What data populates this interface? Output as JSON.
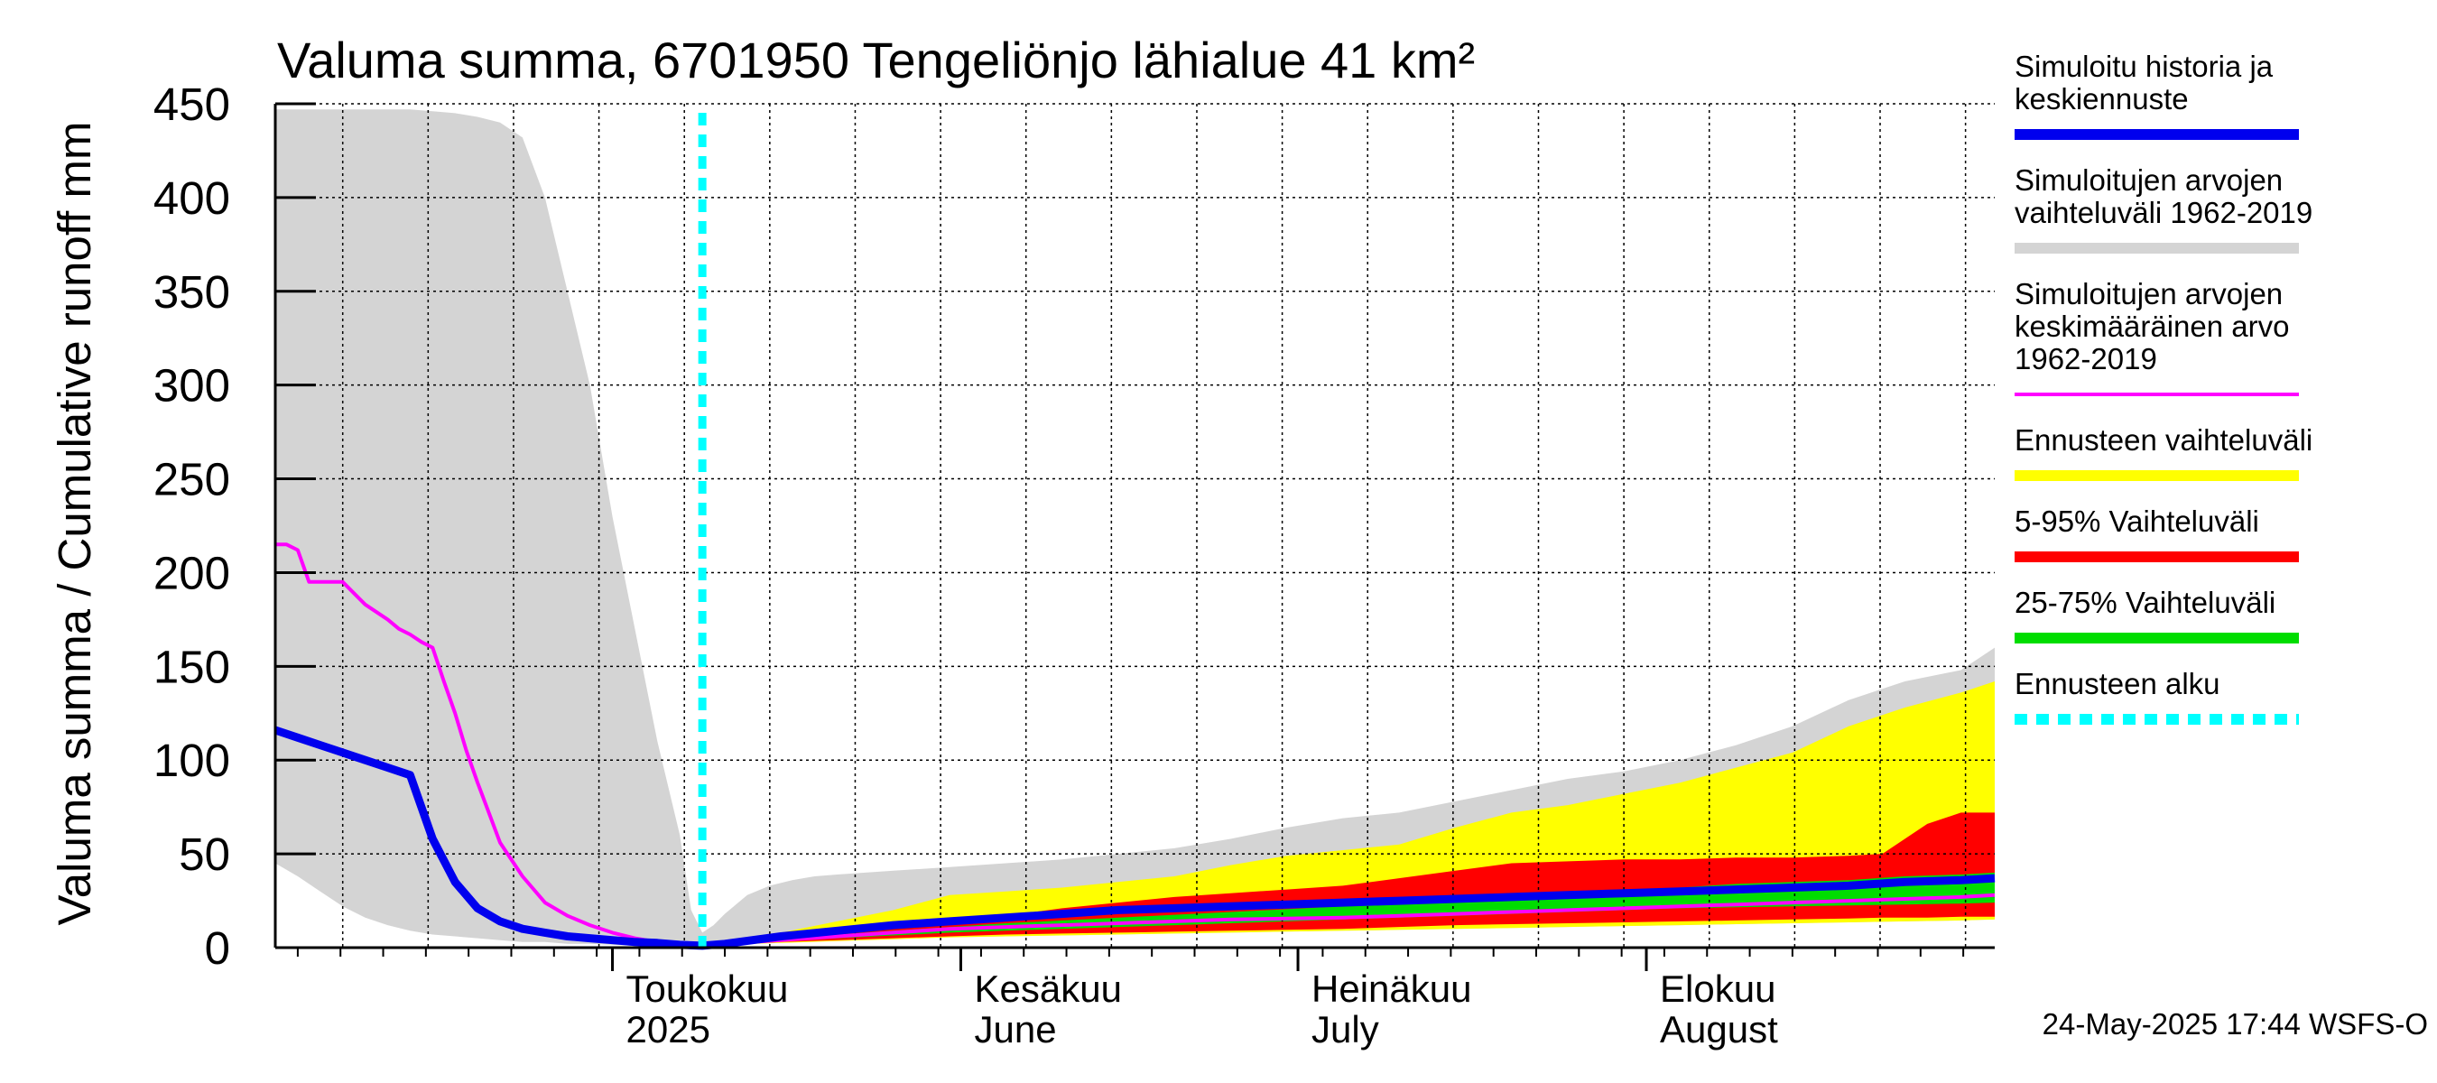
{
  "chart_data": {
    "type": "area",
    "title": "Valuma summa, 6701950 Tengeliönjo lähialue 41 km²",
    "ylabel": "Valuma summa / Cumulative runoff    mm",
    "ylim": [
      0,
      450
    ],
    "yticks": [
      0,
      50,
      100,
      150,
      200,
      250,
      300,
      350,
      400,
      450
    ],
    "x_unit": "days since 2025-04-01",
    "xlim": [
      0,
      153
    ],
    "month_labels": [
      {
        "day": 30,
        "line1": "Toukokuu",
        "line2": "2025"
      },
      {
        "day": 61,
        "line1": "Kesäkuu",
        "line2": "June"
      },
      {
        "day": 91,
        "line1": "Heinäkuu",
        "line2": "July"
      },
      {
        "day": 122,
        "line1": "Elokuu",
        "line2": "August"
      }
    ],
    "forecast_start_day": 38,
    "series": [
      {
        "name": "Simuloitujen arvojen vaihteluväli 1962-2019",
        "kind": "band",
        "color": "#d4d4d4",
        "x": [
          0,
          2,
          4,
          6,
          8,
          10,
          12,
          14,
          16,
          18,
          20,
          22,
          24,
          26,
          28,
          30,
          32,
          34,
          36,
          37,
          38,
          39,
          40,
          42,
          44,
          46,
          48,
          50,
          55,
          60,
          65,
          70,
          75,
          80,
          85,
          90,
          95,
          100,
          105,
          110,
          115,
          120,
          125,
          130,
          135,
          140,
          145,
          150,
          153
        ],
        "upper": [
          447,
          447,
          447,
          447,
          447,
          447,
          447,
          446,
          445,
          443,
          440,
          432,
          400,
          350,
          300,
          230,
          170,
          110,
          60,
          20,
          8,
          12,
          18,
          28,
          33,
          36,
          38,
          39,
          41,
          43,
          45,
          47,
          50,
          53,
          58,
          64,
          69,
          72,
          78,
          84,
          90,
          94,
          100,
          108,
          118,
          132,
          142,
          148,
          160
        ],
        "lower": [
          45,
          38,
          30,
          22,
          16,
          12,
          9,
          7,
          6,
          5,
          4,
          3,
          3,
          2,
          2,
          1.5,
          1,
          1,
          1,
          1,
          1,
          1.5,
          2,
          2.5,
          3,
          3.5,
          4,
          4.5,
          5,
          5.5,
          6,
          6.5,
          7,
          7.5,
          8,
          8.5,
          9,
          9.5,
          10,
          10.5,
          11,
          11.5,
          12,
          12.5,
          13,
          13.5,
          14,
          14.5,
          15
        ]
      },
      {
        "name": "Ennusteen vaihteluväli",
        "kind": "band",
        "color": "#ffff00",
        "x": [
          38,
          40,
          45,
          50,
          55,
          60,
          65,
          70,
          75,
          80,
          85,
          90,
          95,
          100,
          105,
          110,
          115,
          120,
          125,
          130,
          135,
          140,
          145,
          150,
          153
        ],
        "upper": [
          1,
          3,
          8,
          14,
          20,
          28,
          30,
          32,
          35,
          38,
          44,
          49,
          52,
          55,
          64,
          72,
          76,
          82,
          88,
          96,
          104,
          118,
          128,
          136,
          142
        ],
        "lower": [
          1,
          1.5,
          2.5,
          3.5,
          4.5,
          5.5,
          6,
          6.5,
          7,
          7.5,
          8,
          8.5,
          9,
          9.5,
          10,
          10.5,
          11,
          11.5,
          12,
          12.5,
          13,
          13.5,
          14,
          14.5,
          15
        ]
      },
      {
        "name": "5-95% Vaihteluväli",
        "kind": "band",
        "color": "#ff0000",
        "x": [
          38,
          40,
          45,
          50,
          55,
          60,
          65,
          70,
          75,
          80,
          85,
          90,
          95,
          100,
          105,
          110,
          115,
          120,
          125,
          130,
          135,
          140,
          143,
          145,
          147,
          150,
          153
        ],
        "upper": [
          1,
          2,
          5,
          8,
          11,
          14,
          17,
          21,
          24,
          27,
          29,
          31,
          33,
          37,
          41,
          45,
          46,
          47,
          47,
          48,
          48,
          49,
          50,
          58,
          66,
          72,
          72
        ],
        "lower": [
          1,
          1.5,
          3,
          4,
          5,
          6,
          7,
          7.5,
          8,
          8.5,
          9,
          9.5,
          10,
          11,
          12,
          12.5,
          13,
          13.5,
          14,
          14.5,
          15,
          15.5,
          16,
          16,
          16,
          16.5,
          16.5
        ]
      },
      {
        "name": "25-75% Vaihteluväli",
        "kind": "band",
        "color": "#00dd00",
        "x": [
          38,
          40,
          45,
          50,
          55,
          60,
          65,
          70,
          75,
          80,
          85,
          90,
          95,
          100,
          105,
          110,
          115,
          120,
          125,
          130,
          135,
          140,
          145,
          150,
          153
        ],
        "upper": [
          1,
          2,
          5,
          7,
          9,
          11,
          13,
          14.5,
          16,
          17.5,
          19,
          20.5,
          22,
          24,
          25.5,
          27,
          28.5,
          30,
          32,
          34,
          35,
          36,
          38,
          39,
          40
        ],
        "lower": [
          1,
          1.5,
          3.5,
          5,
          6.5,
          8,
          9,
          10,
          11,
          12,
          13,
          14,
          15,
          16,
          17,
          18,
          19,
          20,
          21,
          21.5,
          22,
          22.5,
          23,
          23.5,
          24
        ]
      },
      {
        "name": "Simuloitujen arvojen keskimääräinen arvo 1962-2019",
        "kind": "line",
        "color": "#ff00ff",
        "x": [
          0,
          1,
          2,
          3,
          4,
          6,
          8,
          10,
          11,
          12,
          13,
          14,
          15,
          16,
          17,
          18,
          19,
          20,
          22,
          24,
          26,
          28,
          30,
          32,
          34,
          36,
          38,
          40,
          45,
          50,
          55,
          60,
          65,
          70,
          75,
          80,
          85,
          90,
          95,
          100,
          105,
          110,
          115,
          120,
          125,
          130,
          135,
          140,
          145,
          150,
          153
        ],
        "y": [
          215,
          215,
          212,
          195,
          195,
          195,
          183,
          175,
          170,
          167,
          163,
          160,
          142,
          125,
          105,
          88,
          72,
          56,
          38,
          24,
          17,
          12,
          8,
          5,
          3,
          2,
          1,
          2,
          4,
          6,
          8,
          10,
          11,
          12,
          13,
          14,
          15,
          15.5,
          16,
          17,
          18,
          19,
          20,
          21,
          22,
          23,
          24,
          25,
          26,
          27,
          28
        ]
      },
      {
        "name": "Simuloitu historia ja keskiennuste",
        "kind": "line",
        "color": "#0000ee",
        "x": [
          0,
          2,
          4,
          6,
          8,
          10,
          12,
          14,
          16,
          18,
          20,
          22,
          24,
          26,
          28,
          30,
          32,
          34,
          36,
          38,
          40,
          45,
          50,
          55,
          60,
          65,
          70,
          75,
          80,
          85,
          90,
          95,
          100,
          105,
          110,
          115,
          120,
          125,
          130,
          135,
          140,
          145,
          150,
          153
        ],
        "y": [
          116,
          112,
          108,
          104,
          100,
          96,
          92,
          58,
          35,
          21,
          14,
          10,
          8,
          6,
          5,
          4,
          3,
          2.5,
          1.5,
          1,
          2,
          6,
          9,
          12,
          14,
          16,
          18,
          20,
          21,
          22,
          23,
          24,
          25,
          26,
          27,
          28,
          29,
          30,
          31,
          32,
          33,
          35,
          36,
          37
        ]
      }
    ],
    "legend": [
      {
        "lines": [
          "Simuloitu historia ja",
          "keskiennuste"
        ],
        "color": "#0000ee",
        "style": "solid"
      },
      {
        "lines": [
          "Simuloitujen arvojen",
          "vaihteluväli 1962-2019"
        ],
        "color": "#d4d4d4",
        "style": "solid"
      },
      {
        "lines": [
          "Simuloitujen arvojen",
          "keskimääräinen arvo",
          "   1962-2019"
        ],
        "color": "#ff00ff",
        "style": "thin"
      },
      {
        "lines": [
          "Ennusteen vaihteluväli"
        ],
        "color": "#ffff00",
        "style": "solid"
      },
      {
        "lines": [
          "5-95% Vaihteluväli"
        ],
        "color": "#ff0000",
        "style": "solid"
      },
      {
        "lines": [
          "25-75% Vaihteluväli"
        ],
        "color": "#00dd00",
        "style": "solid"
      },
      {
        "lines": [
          "Ennusteen alku"
        ],
        "color": "#00ffff",
        "style": "dashed"
      }
    ],
    "footer": "24-May-2025 17:44 WSFS-O"
  }
}
